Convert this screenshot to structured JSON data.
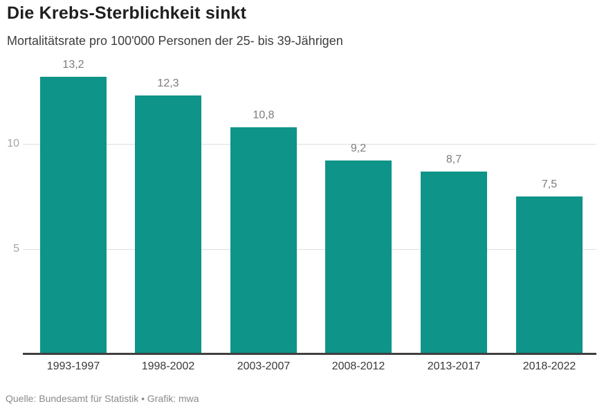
{
  "header": {
    "title": "Die Krebs-Sterblichkeit sinkt",
    "subtitle": "Mortalitätsrate pro 100'000 Personen der 25- bis 39-Jährigen"
  },
  "chart_data": {
    "type": "bar",
    "title": "Die Krebs-Sterblichkeit sinkt",
    "subtitle": "Mortalitätsrate pro 100'000 Personen der 25- bis 39-Jährigen",
    "categories": [
      "1993-1997",
      "1998-2002",
      "2003-2007",
      "2008-2012",
      "2013-2017",
      "2018-2022"
    ],
    "values": [
      13.2,
      12.3,
      10.8,
      9.2,
      8.7,
      7.5
    ],
    "value_labels": [
      "13,2",
      "12,3",
      "10,8",
      "9,2",
      "8,7",
      "7,5"
    ],
    "xlabel": "",
    "ylabel": "",
    "ylim": [
      0,
      13.9
    ],
    "yticks": [
      5,
      10
    ],
    "ytick_labels": [
      "5",
      "10"
    ],
    "grid": true,
    "legend": false,
    "bar_color": "#0e9488"
  },
  "footer": {
    "source": "Quelle: Bundesamt für Statistik • Grafik: mwa"
  },
  "colors": {
    "bar": "#0e9488",
    "grid_line": "#dedede",
    "axis_line": "#3f3f3f",
    "value_label": "#7b7b7b",
    "y_tick_label": "#a5a5a5",
    "x_tick_label": "#383838",
    "title": "#1f1f1f",
    "subtitle": "#3d3d3d",
    "source": "#8a8a8a"
  }
}
